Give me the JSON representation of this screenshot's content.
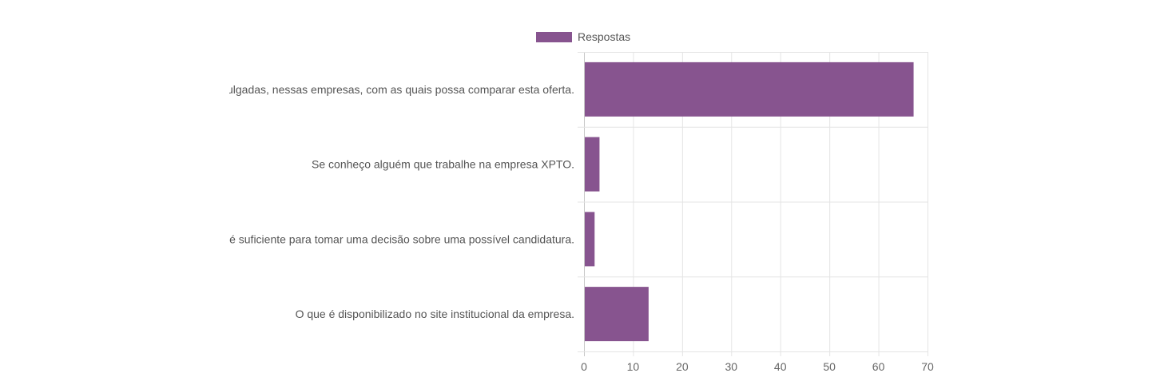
{
  "chart_data": {
    "type": "bar",
    "orientation": "horizontal",
    "title": "",
    "xlabel": "",
    "ylabel": "",
    "categories": [
      "Informações sobre ofertas salariais divulgadas, nessas empresas, com as quais possa comparar esta oferta.",
      "Se conheço alguém que trabalhe na empresa XPTO.",
      "A informação contida no anúncio é suficiente para tomar uma decisão sobre uma possível candidatura.",
      "O que é disponibilizado no site institucional da empresa."
    ],
    "series": [
      {
        "name": "Respostas",
        "values": [
          67,
          3,
          2,
          13
        ],
        "color": "#87548f"
      }
    ],
    "xlim": [
      0,
      70
    ],
    "x_ticks": [
      "0",
      "10",
      "20",
      "30",
      "40",
      "50",
      "60",
      "70"
    ],
    "grid": true,
    "legend": "top-center"
  }
}
